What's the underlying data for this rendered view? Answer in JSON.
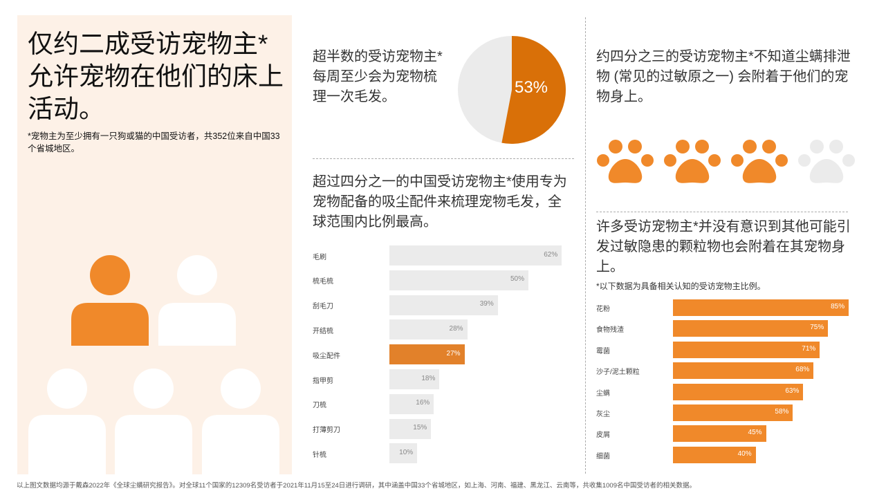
{
  "left_panel": {
    "title": "仅约二成受访宠物主*允许宠物在他们的床上活动。",
    "note": "*宠物主为至少拥有一只狗或猫的中国受访者，共352位来自中国33个省城地区。",
    "people_total": 5,
    "people_highlighted": 1
  },
  "grooming_stat": {
    "text": "超半数的受访宠物主*每周至少会为宠物梳理一次毛发。",
    "value_label": "53%",
    "value": 53
  },
  "dust_mite_stat": {
    "text": "约四分之三的受访宠物主*不知道尘螨排泄物 (常见的过敏原之一) 会附着于他们的宠物身上。",
    "paws_total": 4,
    "paws_highlighted": 3
  },
  "colors": {
    "orange": "#f0892a",
    "dark_orange": "#d97008",
    "highlight_bar": "#e2812a",
    "gray_bar": "#ebebeb",
    "panel_bg": "#fdf1e7"
  },
  "chart_data": [
    {
      "type": "bar",
      "orientation": "horizontal",
      "title": "超过四分之一的中国受访宠物主*使用专为宠物配备的吸尘配件来梳理宠物毛发，全球范围内比例最高。",
      "categories": [
        "毛刷",
        "梳毛梳",
        "刮毛刀",
        "开结梳",
        "吸尘配件",
        "指甲剪",
        "刀梳",
        "打薄剪刀",
        "针梳"
      ],
      "values": [
        62,
        50,
        39,
        28,
        27,
        18,
        16,
        15,
        10
      ],
      "labels": [
        "62%",
        "50%",
        "39%",
        "28%",
        "27%",
        "18%",
        "16%",
        "15%",
        "10%"
      ],
      "highlighted": "吸尘配件",
      "xlim": [
        0,
        62
      ]
    },
    {
      "type": "bar",
      "orientation": "horizontal",
      "title": "许多受访宠物主*并没有意识到其他可能引发过敏隐患的颗粒物也会附着在其宠物身上。",
      "subtitle": "*以下数据为具备相关认知的受访宠物主比例。",
      "categories": [
        "花粉",
        "食物残渣",
        "霉菌",
        "沙子/泥土颗粒",
        "尘螨",
        "灰尘",
        "皮屑",
        "细菌"
      ],
      "values": [
        85,
        75,
        71,
        68,
        63,
        58,
        45,
        40
      ],
      "labels": [
        "85%",
        "75%",
        "71%",
        "68%",
        "63%",
        "58%",
        "45%",
        "40%"
      ],
      "xlim": [
        0,
        85
      ]
    }
  ],
  "footer": "以上图文数据均源于戴森2022年《全球尘螨研究报告》。对全球11个国家的12309名受访者于2021年11月15至24日进行调研，其中涵盖中国33个省城地区，如上海、河南、福建、黑龙江、云南等，共收集1009名中国受访者的相关数据。"
}
